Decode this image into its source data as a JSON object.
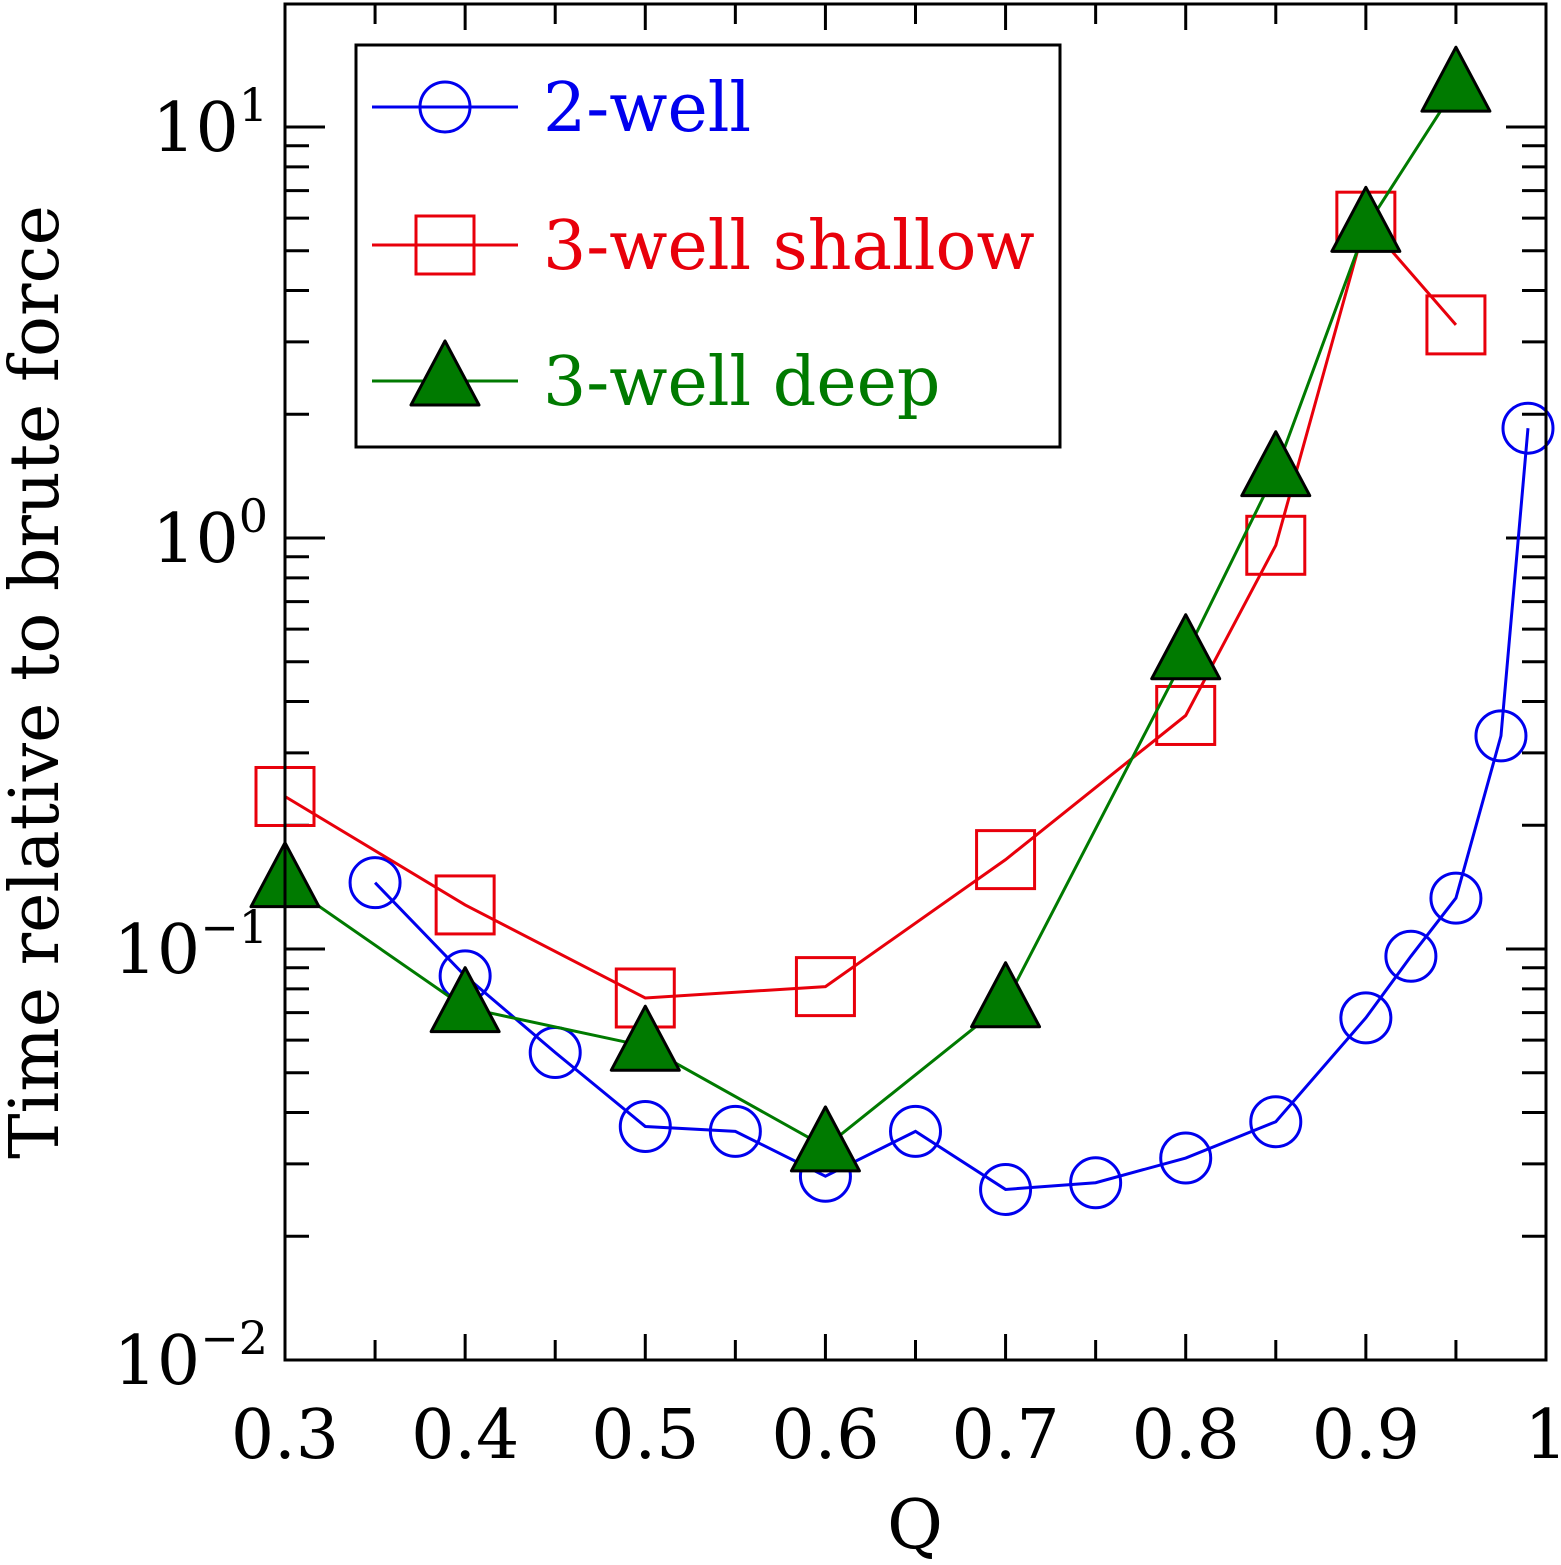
{
  "chart_data": {
    "type": "line",
    "title": "",
    "xlabel": "Q",
    "ylabel": "Time relative to brute force",
    "xlim": [
      0.3,
      1.0
    ],
    "ylim": [
      0.01,
      25
    ],
    "yscale": "log",
    "xticks": [
      0.3,
      0.4,
      0.5,
      0.6,
      0.7,
      0.8,
      0.9,
      1.0
    ],
    "xtick_labels": [
      "0.3",
      "0.4",
      "0.5",
      "0.6",
      "0.7",
      "0.8",
      "0.9",
      "1"
    ],
    "yticks": [
      {
        "value": 0.01,
        "base": "10",
        "exp": "−2"
      },
      {
        "value": 0.1,
        "base": "10",
        "exp": "−1"
      },
      {
        "value": 1,
        "base": "10",
        "exp": "0"
      },
      {
        "value": 10,
        "base": "10",
        "exp": "1"
      }
    ],
    "grid": false,
    "legend_position": "top-left",
    "series": [
      {
        "name": "2-well",
        "color": "#0000ee",
        "marker": "circle-open",
        "x": [
          0.35,
          0.4,
          0.45,
          0.5,
          0.55,
          0.6,
          0.65,
          0.7,
          0.75,
          0.8,
          0.85,
          0.9,
          0.925,
          0.95,
          0.975,
          0.99
        ],
        "y": [
          0.145,
          0.086,
          0.056,
          0.037,
          0.036,
          0.028,
          0.036,
          0.026,
          0.027,
          0.031,
          0.038,
          0.068,
          0.096,
          0.133,
          0.33,
          1.85
        ]
      },
      {
        "name": "3-well shallow",
        "color": "#e8000b",
        "marker": "square-open",
        "x": [
          0.3,
          0.4,
          0.5,
          0.6,
          0.7,
          0.8,
          0.85,
          0.9,
          0.95
        ],
        "y": [
          0.235,
          0.128,
          0.076,
          0.081,
          0.165,
          0.37,
          0.96,
          5.9,
          3.3
        ]
      },
      {
        "name": "3-well deep",
        "color": "#007a00",
        "marker": "triangle-filled",
        "x": [
          0.3,
          0.4,
          0.5,
          0.6,
          0.7,
          0.8,
          0.85,
          0.9,
          0.95
        ],
        "y": [
          0.145,
          0.072,
          0.058,
          0.033,
          0.074,
          0.52,
          1.45,
          5.7,
          12.5
        ]
      }
    ]
  }
}
